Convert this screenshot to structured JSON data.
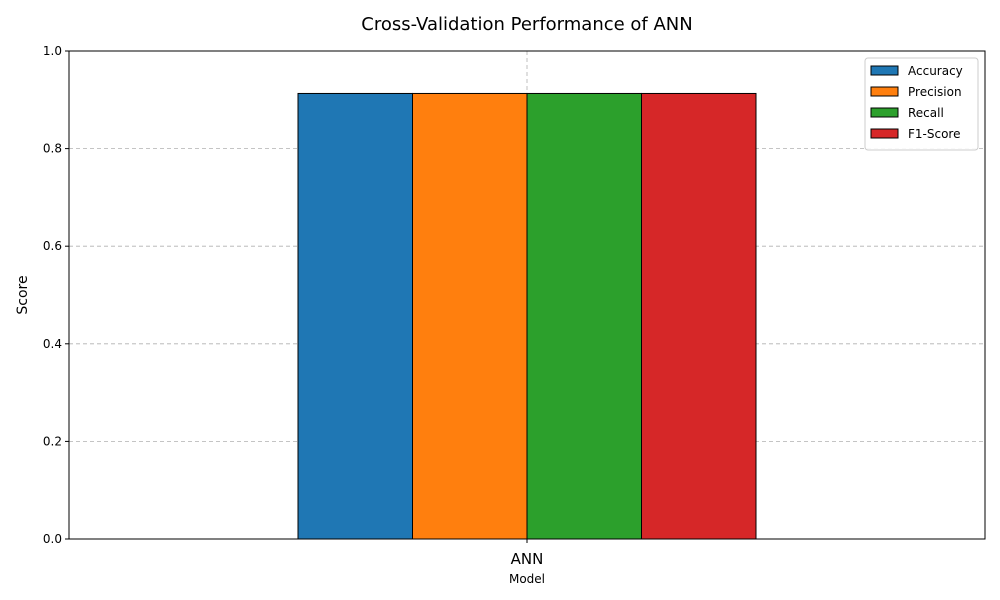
{
  "chart_data": {
    "type": "bar",
    "title": "Cross-Validation Performance of ANN",
    "xlabel": "Model",
    "ylabel": "Score",
    "categories": [
      "ANN"
    ],
    "series": [
      {
        "name": "Accuracy",
        "values": [
          0.913
        ],
        "color": "#1f77b4"
      },
      {
        "name": "Precision",
        "values": [
          0.913
        ],
        "color": "#ff7f0e"
      },
      {
        "name": "Recall",
        "values": [
          0.913
        ],
        "color": "#2ca02c"
      },
      {
        "name": "F1-Score",
        "values": [
          0.913
        ],
        "color": "#d62728"
      }
    ],
    "ylim": [
      0,
      1
    ],
    "yticks": [
      "0.0",
      "0.2",
      "0.4",
      "0.6",
      "0.8",
      "1.0"
    ],
    "grid": true,
    "legend_position": "top-right"
  }
}
